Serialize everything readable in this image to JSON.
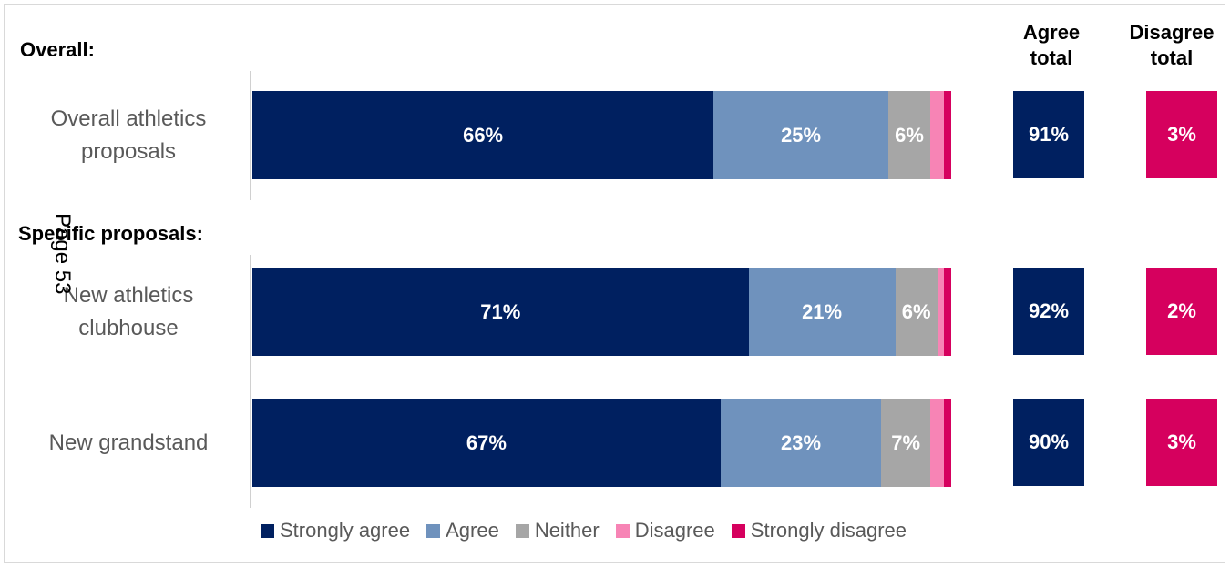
{
  "sections": {
    "overall": "Overall:",
    "specific": "Specific proposals:"
  },
  "columns": {
    "agree": "Agree\ntotal",
    "disagree": "Disagree\ntotal"
  },
  "page_number": "Page 53",
  "colors": {
    "strongly_agree": "#002060",
    "agree": "#6f92bd",
    "neither": "#a6a6a6",
    "disagree": "#f784b5",
    "strongly_disagree": "#d6005e"
  },
  "chart_data": {
    "type": "bar",
    "orientation": "horizontal-stacked-100",
    "categories": [
      "Overall athletics proposals",
      "New athletics clubhouse",
      "New grandstand"
    ],
    "series": [
      {
        "name": "Strongly agree",
        "values": [
          66,
          71,
          67
        ],
        "labels": [
          "66%",
          "71%",
          "67%"
        ]
      },
      {
        "name": "Agree",
        "values": [
          25,
          21,
          23
        ],
        "labels": [
          "25%",
          "21%",
          "23%"
        ]
      },
      {
        "name": "Neither",
        "values": [
          6,
          6,
          7
        ],
        "labels": [
          "6%",
          "6%",
          "7%"
        ]
      },
      {
        "name": "Disagree",
        "values": [
          2,
          1,
          2
        ],
        "labels": [
          "",
          "",
          ""
        ]
      },
      {
        "name": "Strongly disagree",
        "values": [
          1,
          1,
          1
        ],
        "labels": [
          "",
          "",
          ""
        ]
      }
    ],
    "agree_total": [
      "91%",
      "92%",
      "90%"
    ],
    "disagree_total": [
      "3%",
      "2%",
      "3%"
    ],
    "legend_position": "bottom",
    "grid": false,
    "xlim": [
      0,
      100
    ]
  }
}
